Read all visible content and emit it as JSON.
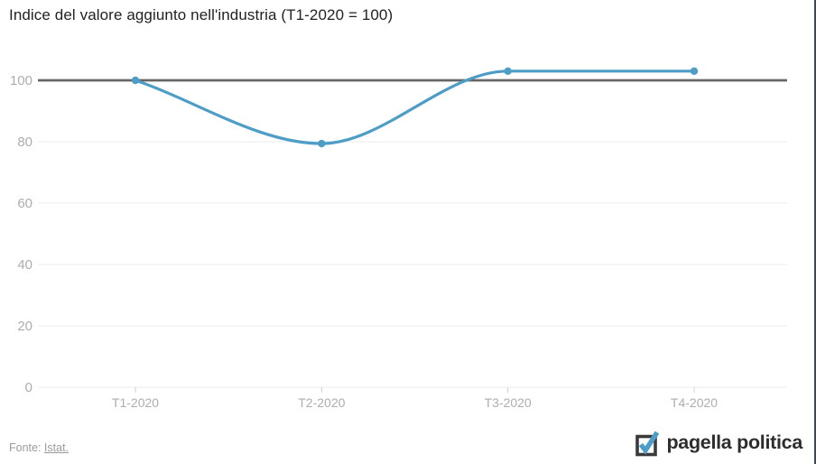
{
  "chart_data": {
    "type": "line",
    "title": "Indice del valore aggiunto nell'industria (T1-2020 = 100)",
    "categories": [
      "T1-2020",
      "T2-2020",
      "T3-2020",
      "T4-2020"
    ],
    "series": [
      {
        "name": "Indice del valore aggiunto nell'industria",
        "values": [
          100,
          79.4,
          103,
          103
        ]
      }
    ],
    "xlabel": "",
    "ylabel": "",
    "yticks": [
      0,
      20,
      40,
      60,
      80,
      100
    ],
    "ylim": [
      0,
      110
    ],
    "reference_line": 100,
    "grid": true,
    "legend": false
  },
  "source": {
    "prefix": "Fonte:",
    "link_label": "Istat."
  },
  "brand": {
    "name": "pagella politica"
  },
  "colors": {
    "background": "#ffffff",
    "line": "#4d9dc7",
    "marker": "#4d9dc7",
    "reference_line": "#666666",
    "grid": "#ebebeb",
    "axis_tick": "#d0d0d0",
    "axis_label": "#abadaf",
    "title": "#222222",
    "source_text": "#9b9b9b",
    "brand_text": "#2d2d2d",
    "logo_box": "#3a3a3a",
    "logo_check": "#4d9dc7",
    "right_border": "#3e4a52"
  }
}
